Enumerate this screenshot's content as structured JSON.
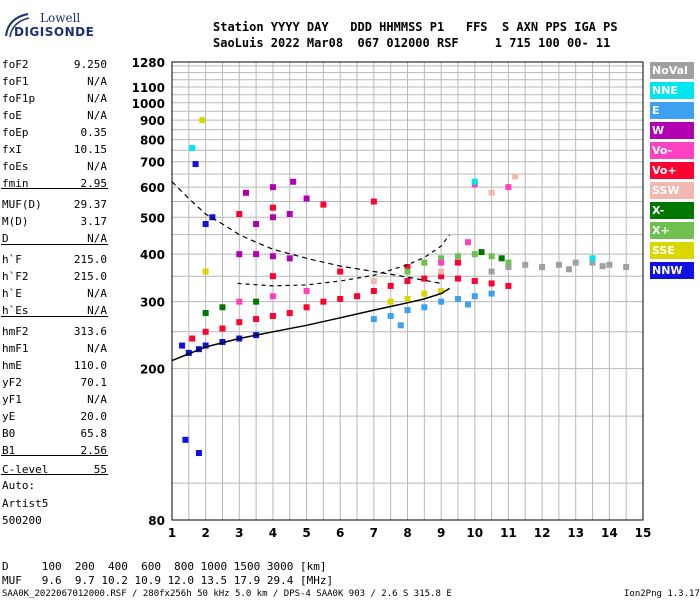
{
  "logo": {
    "line1": "Lowell",
    "line2": "DIGISONDE"
  },
  "header": {
    "labels": "Station YYYY DAY   DDD HHMMSS P1   FFS  S AXN PPS IGA PS",
    "values": "SaoLuis 2022 Mar08  067 012000 RSF     1 715 100 00- 11"
  },
  "params": [
    {
      "name": "foF2",
      "value": "9.250"
    },
    {
      "name": "foF1",
      "value": "N/A"
    },
    {
      "name": "foF1p",
      "value": "N/A"
    },
    {
      "name": "foE",
      "value": "N/A"
    },
    {
      "name": "foEp",
      "value": "0.35"
    },
    {
      "name": "fxI",
      "value": "10.15"
    },
    {
      "name": "foEs",
      "value": "N/A"
    },
    {
      "name": "fmin",
      "value": "2.95"
    },
    {
      "name": "MUF(D)",
      "value": "29.37"
    },
    {
      "name": "M(D)",
      "value": "3.17"
    },
    {
      "name": "D",
      "value": "N/A"
    },
    {
      "name": "h`F",
      "value": "215.0"
    },
    {
      "name": "h`F2",
      "value": "215.0"
    },
    {
      "name": "h`E",
      "value": "N/A"
    },
    {
      "name": "h`Es",
      "value": "N/A"
    },
    {
      "name": "hmF2",
      "value": "313.6"
    },
    {
      "name": "hmF1",
      "value": "N/A"
    },
    {
      "name": "hmE",
      "value": "110.0"
    },
    {
      "name": "yF2",
      "value": "70.1"
    },
    {
      "name": "yF1",
      "value": "N/A"
    },
    {
      "name": "yE",
      "value": "20.0"
    },
    {
      "name": "B0",
      "value": "65.8"
    },
    {
      "name": "B1",
      "value": "2.56"
    },
    {
      "name": "C-level",
      "value": "55"
    }
  ],
  "auto": {
    "line1": "Auto:",
    "line2": "Artist5",
    "line3": "500200"
  },
  "legend": [
    {
      "label": "NoVal",
      "color": "#a0a0a0"
    },
    {
      "label": "NNE",
      "color": "#00e5ee"
    },
    {
      "label": "E",
      "color": "#3ea0f0"
    },
    {
      "label": "W",
      "color": "#b000b0"
    },
    {
      "label": "Vo-",
      "color": "#ff40c0"
    },
    {
      "label": "Vo+",
      "color": "#ff0030"
    },
    {
      "label": "SSW",
      "color": "#f0b8b0"
    },
    {
      "label": "X-",
      "color": "#007800"
    },
    {
      "label": "X+",
      "color": "#70c050"
    },
    {
      "label": "SSE",
      "color": "#d8d800"
    },
    {
      "label": "NNW",
      "color": "#1010e0"
    }
  ],
  "footer": {
    "d_row": "D     100  200  400  600  800 1000 1500 3000 [km]",
    "muf_row": "MUF   9.6  9.7 10.2 10.9 12.0 13.5 17.9 29.4 [MHz]",
    "file_line": "SAA0K_2022067012000.RSF / 280fx256h 50 kHz 5.0 km / DPS-4 SAA0K 903 / 2.6 S 315.8 E",
    "version": "Ion2Png 1.3.17"
  },
  "chart_data": {
    "type": "scatter",
    "title": "",
    "xlabel": "",
    "ylabel": "",
    "xlim": [
      1,
      15
    ],
    "y_scale": "log",
    "ylim": [
      80,
      1280
    ],
    "x_ticks": [
      "1",
      "2",
      "3",
      "4",
      "5",
      "6",
      "7",
      "8",
      "9",
      "10",
      "11",
      "12",
      "13",
      "14",
      "15"
    ],
    "y_ticks": [
      80,
      200,
      300,
      400,
      500,
      600,
      700,
      800,
      900,
      1000,
      1100,
      1280
    ],
    "grid": true,
    "legend_position": "right",
    "series": [
      {
        "name": "Vo+",
        "points": [
          [
            1.6,
            240
          ],
          [
            2.0,
            250
          ],
          [
            2.5,
            255
          ],
          [
            3.0,
            265
          ],
          [
            3.5,
            270
          ],
          [
            4.0,
            275
          ],
          [
            4.5,
            280
          ],
          [
            5.0,
            290
          ],
          [
            5.5,
            300
          ],
          [
            6.0,
            305
          ],
          [
            6.5,
            310
          ],
          [
            7.0,
            320
          ],
          [
            7.5,
            330
          ],
          [
            8.0,
            340
          ],
          [
            8.5,
            345
          ],
          [
            9.0,
            350
          ],
          [
            9.5,
            345
          ],
          [
            10.0,
            340
          ],
          [
            10.5,
            335
          ],
          [
            11.0,
            330
          ],
          [
            3.0,
            510
          ],
          [
            4.0,
            530
          ],
          [
            5.5,
            540
          ],
          [
            7.0,
            550
          ],
          [
            4.0,
            350
          ],
          [
            6.0,
            360
          ],
          [
            8.0,
            370
          ],
          [
            9.5,
            380
          ]
        ]
      },
      {
        "name": "W",
        "points": [
          [
            3.0,
            400
          ],
          [
            3.5,
            400
          ],
          [
            4.0,
            395
          ],
          [
            4.5,
            390
          ],
          [
            3.5,
            480
          ],
          [
            4.0,
            500
          ],
          [
            4.5,
            510
          ],
          [
            3.2,
            580
          ],
          [
            4.0,
            600
          ],
          [
            4.6,
            620
          ],
          [
            5.0,
            560
          ]
        ]
      },
      {
        "name": "NNW",
        "points": [
          [
            1.3,
            230
          ],
          [
            1.5,
            220
          ],
          [
            1.8,
            225
          ],
          [
            2.0,
            230
          ],
          [
            2.5,
            235
          ],
          [
            3.0,
            240
          ],
          [
            3.5,
            245
          ],
          [
            1.7,
            690
          ],
          [
            1.4,
            130
          ],
          [
            1.8,
            120
          ],
          [
            2.0,
            480
          ],
          [
            2.2,
            500
          ]
        ]
      },
      {
        "name": "E",
        "points": [
          [
            7.0,
            270
          ],
          [
            7.5,
            275
          ],
          [
            8.0,
            285
          ],
          [
            8.5,
            290
          ],
          [
            9.0,
            300
          ],
          [
            9.5,
            305
          ],
          [
            10.0,
            310
          ],
          [
            10.5,
            315
          ],
          [
            7.8,
            260
          ],
          [
            9.8,
            295
          ]
        ]
      },
      {
        "name": "NoVal",
        "points": [
          [
            10.5,
            360
          ],
          [
            11.0,
            370
          ],
          [
            11.5,
            375
          ],
          [
            12.0,
            370
          ],
          [
            12.5,
            375
          ],
          [
            13.0,
            380
          ],
          [
            13.5,
            380
          ],
          [
            14.0,
            375
          ],
          [
            14.5,
            370
          ],
          [
            12.8,
            365
          ],
          [
            13.8,
            372
          ]
        ]
      },
      {
        "name": "X+",
        "points": [
          [
            8.5,
            380
          ],
          [
            9.0,
            390
          ],
          [
            9.5,
            395
          ],
          [
            10.0,
            400
          ],
          [
            10.5,
            395
          ],
          [
            11.0,
            380
          ],
          [
            8.0,
            360
          ]
        ]
      },
      {
        "name": "X-",
        "points": [
          [
            2.0,
            280
          ],
          [
            2.5,
            290
          ],
          [
            3.5,
            300
          ],
          [
            10.2,
            405
          ],
          [
            10.8,
            390
          ]
        ]
      },
      {
        "name": "SSE",
        "points": [
          [
            2.0,
            360
          ],
          [
            7.5,
            300
          ],
          [
            8.0,
            305
          ],
          [
            8.5,
            315
          ],
          [
            9.0,
            320
          ],
          [
            1.9,
            900
          ]
        ]
      },
      {
        "name": "Vo-",
        "points": [
          [
            3.0,
            300
          ],
          [
            4.0,
            310
          ],
          [
            5.0,
            320
          ],
          [
            9.0,
            380
          ],
          [
            9.8,
            430
          ],
          [
            11.0,
            600
          ],
          [
            10.0,
            610
          ]
        ]
      },
      {
        "name": "NNE",
        "points": [
          [
            1.6,
            760
          ],
          [
            10.0,
            620
          ],
          [
            13.5,
            390
          ]
        ]
      },
      {
        "name": "SSW",
        "points": [
          [
            7.0,
            340
          ],
          [
            9.0,
            360
          ],
          [
            10.5,
            580
          ],
          [
            11.2,
            640
          ]
        ]
      }
    ],
    "profile_curve": {
      "points": [
        [
          1.0,
          210
        ],
        [
          2.0,
          228
        ],
        [
          3.0,
          240
        ],
        [
          4.0,
          250
        ],
        [
          5.0,
          260
        ],
        [
          6.0,
          272
        ],
        [
          7.0,
          285
        ],
        [
          8.0,
          298
        ],
        [
          8.5,
          305
        ],
        [
          9.0,
          315
        ],
        [
          9.25,
          325
        ]
      ]
    },
    "virtual_height_curve": {
      "points": [
        [
          2.95,
          335
        ],
        [
          4.0,
          330
        ],
        [
          5.0,
          332
        ],
        [
          6.0,
          340
        ],
        [
          7.0,
          352
        ],
        [
          8.0,
          375
        ],
        [
          8.5,
          392
        ],
        [
          9.0,
          420
        ],
        [
          9.25,
          450
        ]
      ]
    },
    "extrapolation_curve": {
      "points": [
        [
          1.0,
          620
        ],
        [
          1.5,
          560
        ],
        [
          2.0,
          510
        ],
        [
          2.5,
          480
        ],
        [
          3.0,
          450
        ],
        [
          3.5,
          430
        ],
        [
          4.0,
          412
        ],
        [
          5.0,
          390
        ],
        [
          6.0,
          372
        ],
        [
          7.0,
          360
        ],
        [
          8.0,
          348
        ],
        [
          9.0,
          335
        ]
      ]
    }
  }
}
